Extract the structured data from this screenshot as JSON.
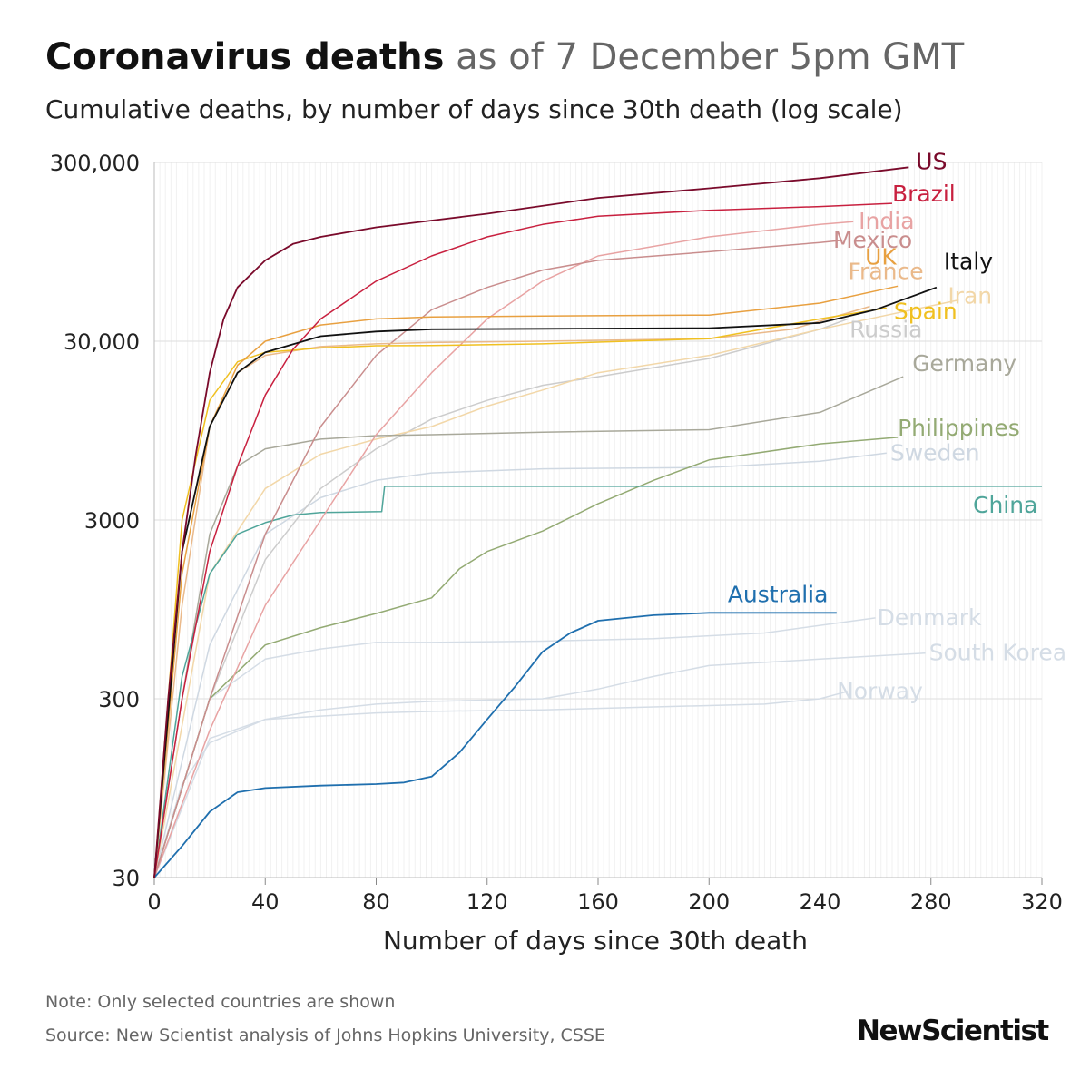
{
  "header": {
    "title_bold": "Coronavirus deaths",
    "title_light": "as of 7 December 5pm GMT",
    "subtitle": "Cumulative deaths, by number of days since 30th death (log scale)"
  },
  "footer": {
    "note": "Note: Only selected countries are shown",
    "source": "Source: New Scientist analysis of Johns Hopkins University, CSSE",
    "logo": "NewScientist"
  },
  "chart_data": {
    "type": "line",
    "title": "Coronavirus deaths as of 7 December 5pm GMT",
    "subtitle": "Cumulative deaths, by number of days since 30th death (log scale)",
    "xlabel": "Number of days since 30th death",
    "ylabel": "",
    "xlim": [
      0,
      320
    ],
    "ylim": [
      30,
      300000
    ],
    "yscale": "log",
    "x_ticks": [
      0,
      40,
      80,
      120,
      160,
      200,
      240,
      280,
      320
    ],
    "y_ticks": [
      30,
      300,
      3000,
      30000,
      300000
    ],
    "y_tick_labels": [
      "30",
      "300",
      "3000",
      "30,000",
      "300,000"
    ],
    "grid": true,
    "legend": "direct labels at line ends",
    "series": [
      {
        "name": "US",
        "color": "#7a0a2b",
        "x": [
          0,
          5,
          10,
          15,
          20,
          25,
          30,
          40,
          50,
          60,
          80,
          100,
          120,
          160,
          200,
          240,
          272
        ],
        "y": [
          30,
          300,
          2000,
          7000,
          20000,
          40000,
          60000,
          85000,
          105000,
          115000,
          130000,
          142000,
          155000,
          190000,
          215000,
          245000,
          282000
        ]
      },
      {
        "name": "Brazil",
        "color": "#c8203f",
        "x": [
          0,
          10,
          20,
          30,
          40,
          50,
          60,
          80,
          100,
          120,
          140,
          160,
          200,
          240,
          266
        ],
        "y": [
          30,
          300,
          2000,
          6000,
          15000,
          27000,
          40000,
          65000,
          90000,
          115000,
          135000,
          150000,
          162000,
          170000,
          177000
        ]
      },
      {
        "name": "India",
        "color": "#e8a3a3",
        "x": [
          0,
          20,
          40,
          60,
          80,
          100,
          120,
          140,
          160,
          200,
          240,
          252
        ],
        "y": [
          30,
          200,
          1000,
          3000,
          9000,
          20000,
          40000,
          65000,
          90000,
          115000,
          135000,
          140000
        ]
      },
      {
        "name": "Mexico",
        "color": "#c98d8d",
        "x": [
          0,
          20,
          40,
          60,
          80,
          100,
          120,
          140,
          160,
          200,
          240,
          248
        ],
        "y": [
          30,
          300,
          2500,
          10000,
          25000,
          45000,
          60000,
          75000,
          85000,
          95000,
          107000,
          110000
        ]
      },
      {
        "name": "UK",
        "color": "#e8a040",
        "x": [
          0,
          10,
          20,
          30,
          40,
          60,
          80,
          100,
          140,
          200,
          240,
          268
        ],
        "y": [
          30,
          1500,
          10000,
          22000,
          30000,
          37000,
          40000,
          41000,
          41500,
          42000,
          49000,
          61000
        ]
      },
      {
        "name": "France",
        "color": "#eab98a",
        "x": [
          0,
          10,
          20,
          30,
          40,
          60,
          80,
          100,
          140,
          200,
          230,
          258
        ],
        "y": [
          30,
          1000,
          10000,
          20000,
          25000,
          28000,
          29000,
          29500,
          30000,
          31000,
          35000,
          47000
        ]
      },
      {
        "name": "Italy",
        "color": "#111111",
        "x": [
          0,
          10,
          20,
          30,
          40,
          60,
          80,
          100,
          140,
          200,
          240,
          260,
          282
        ],
        "y": [
          30,
          2000,
          10000,
          20000,
          26000,
          32000,
          34000,
          35000,
          35200,
          35500,
          38000,
          45000,
          60000
        ]
      },
      {
        "name": "Iran",
        "color": "#f2d7a8",
        "x": [
          0,
          20,
          40,
          60,
          80,
          100,
          120,
          140,
          160,
          200,
          240,
          290
        ],
        "y": [
          30,
          1500,
          4500,
          7000,
          8500,
          10000,
          13000,
          16000,
          20000,
          25000,
          35000,
          51000
        ]
      },
      {
        "name": "Spain",
        "color": "#f0c020",
        "x": [
          0,
          10,
          20,
          30,
          40,
          60,
          80,
          100,
          140,
          200,
          240,
          264
        ],
        "y": [
          30,
          3000,
          14000,
          23000,
          26000,
          27500,
          28300,
          28400,
          29000,
          31000,
          40000,
          46000
        ]
      },
      {
        "name": "Russia",
        "color": "#cccccc",
        "x": [
          0,
          20,
          40,
          60,
          80,
          100,
          120,
          140,
          160,
          200,
          240,
          250
        ],
        "y": [
          30,
          300,
          1800,
          4500,
          7500,
          11000,
          14000,
          17000,
          19000,
          24000,
          35000,
          40000
        ]
      },
      {
        "name": "Germany",
        "color": "#a8a89a",
        "x": [
          0,
          10,
          20,
          30,
          40,
          60,
          80,
          100,
          140,
          200,
          240,
          270
        ],
        "y": [
          30,
          300,
          2500,
          6000,
          7500,
          8500,
          8900,
          9000,
          9300,
          9600,
          12000,
          19000
        ]
      },
      {
        "name": "Philippines",
        "color": "#93aa73",
        "x": [
          0,
          20,
          40,
          60,
          80,
          100,
          110,
          120,
          140,
          160,
          180,
          200,
          240,
          268
        ],
        "y": [
          30,
          300,
          600,
          750,
          900,
          1100,
          1600,
          2000,
          2600,
          3700,
          5000,
          6500,
          8000,
          8700
        ]
      },
      {
        "name": "Sweden",
        "color": "#cfd8e2",
        "x": [
          0,
          20,
          40,
          60,
          80,
          100,
          140,
          200,
          240,
          264
        ],
        "y": [
          30,
          600,
          2500,
          4000,
          5000,
          5500,
          5800,
          5900,
          6400,
          7100
        ]
      },
      {
        "name": "China",
        "color": "#4fa59a",
        "x": [
          0,
          10,
          20,
          30,
          40,
          50,
          60,
          82,
          83,
          320
        ],
        "y": [
          30,
          400,
          1500,
          2500,
          2900,
          3200,
          3300,
          3340,
          4630,
          4630
        ]
      },
      {
        "name": "Australia",
        "color": "#1f6fae",
        "x": [
          0,
          10,
          20,
          30,
          40,
          60,
          80,
          90,
          100,
          110,
          120,
          130,
          140,
          150,
          160,
          180,
          200,
          246
        ],
        "y": [
          30,
          45,
          70,
          90,
          95,
          98,
          100,
          102,
          110,
          150,
          230,
          350,
          550,
          700,
          820,
          880,
          907,
          907
        ]
      },
      {
        "name": "Denmark",
        "color": "#d5dde6",
        "x": [
          0,
          20,
          40,
          60,
          80,
          100,
          140,
          180,
          220,
          260
        ],
        "y": [
          30,
          300,
          500,
          570,
          620,
          620,
          630,
          650,
          700,
          850
        ]
      },
      {
        "name": "South Korea",
        "color": "#d5dde6",
        "x": [
          0,
          10,
          20,
          40,
          60,
          80,
          100,
          140,
          160,
          180,
          200,
          240,
          278
        ],
        "y": [
          30,
          100,
          170,
          230,
          260,
          280,
          290,
          300,
          340,
          400,
          460,
          500,
          540
        ]
      },
      {
        "name": "Norway",
        "color": "#d5dde6",
        "x": [
          0,
          20,
          40,
          60,
          80,
          100,
          140,
          180,
          220,
          240,
          250
        ],
        "y": [
          30,
          180,
          230,
          240,
          250,
          255,
          260,
          270,
          280,
          300,
          330
        ]
      }
    ]
  }
}
